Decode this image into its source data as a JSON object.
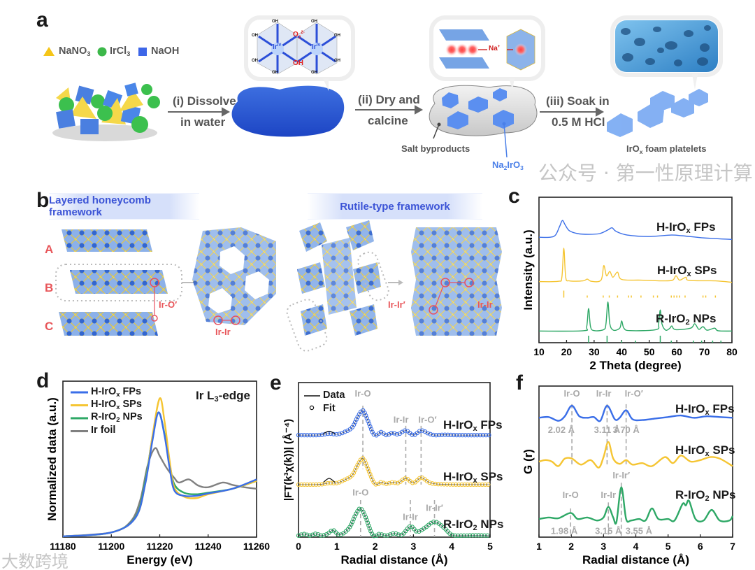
{
  "panel_labels": {
    "a": "a",
    "b": "b",
    "c": "c",
    "d": "d",
    "e": "e",
    "f": "f"
  },
  "panel_a": {
    "legend": [
      {
        "pre": "NaNO",
        "sub": "3",
        "color": "#f5c518",
        "shape": "triangle"
      },
      {
        "pre": "IrCl",
        "sub": "3",
        "color": "#3cb84a",
        "shape": "circle"
      },
      {
        "pre": "NaOH",
        "sub": "",
        "color": "#3d66e8",
        "shape": "square"
      }
    ],
    "step1": {
      "line1": "(i) Dissolve",
      "line2": "in water"
    },
    "step2": {
      "line1": "(ii) Dry and",
      "line2": "calcine"
    },
    "step3": {
      "line1": "(iii) Soak in",
      "line2": "0.5 M HCl"
    },
    "bubble1": {
      "oh": "OH",
      "o2": "O",
      "o2_sub": "2",
      "o2_sup": "2-",
      "ir": "Ir",
      "ir_sup": "IV"
    },
    "bubble2": {
      "na": "Na",
      "na_sup": "+"
    },
    "salt_label": "Salt byproducts",
    "na2iro3": {
      "pre": "Na",
      "sub1": "2",
      "mid": "IrO",
      "sub2": "3"
    },
    "foam_label": {
      "pre": "IrO",
      "sub": "x",
      "post": " foam platelets"
    }
  },
  "panel_b": {
    "banner_left": "Layered honeycomb framework",
    "banner_right": "Rutile-type framework",
    "layers": [
      "A",
      "B",
      "C"
    ],
    "ir_o_prime": "Ir-O′",
    "ir_ir": "Ir-Ir",
    "ir_ir_prime": "Ir-Ir′",
    "ir_ir_right": "Ir-Ir"
  },
  "series_labels": {
    "fps": {
      "pre": "H-IrO",
      "sub": "x",
      "post": " FPs"
    },
    "sps": {
      "pre": "H-IrO",
      "sub": "x",
      "post": " SPs"
    },
    "nps": {
      "pre": "R-IrO",
      "sub": "2",
      "post": " NPs"
    },
    "foil": {
      "pre": "Ir foil",
      "sub": "",
      "post": ""
    }
  },
  "colors": {
    "fps": "#3a6ee8",
    "sps": "#f5c533",
    "nps": "#2ea866",
    "foil": "#808080",
    "ref_line": "#aaaaaa"
  },
  "chart_data": [
    {
      "id": "c",
      "type": "line",
      "xlabel": "2 Theta (degree)",
      "ylabel": "Intensity (a.u.)",
      "xlim": [
        10,
        80
      ],
      "ylim": [
        0,
        100
      ],
      "xticks": [
        "10",
        "20",
        "30",
        "40",
        "50",
        "60",
        "70",
        "80"
      ],
      "series": [
        {
          "key": "fps",
          "x": [
            10,
            14,
            16,
            17.5,
            18.5,
            19.5,
            21,
            24,
            28,
            32,
            35,
            36.5,
            38,
            42,
            50,
            58,
            62,
            70,
            80
          ],
          "y": [
            72.5,
            72.5,
            74,
            80,
            84,
            81,
            77,
            75,
            74.5,
            75,
            77.5,
            79,
            76.5,
            74,
            73,
            74,
            73.5,
            72,
            71
          ]
        },
        {
          "key": "sps",
          "x": [
            10,
            17,
            18.3,
            19,
            19.7,
            21,
            26,
            27.5,
            29,
            32.5,
            33.5,
            34.5,
            35.7,
            36.8,
            38.5,
            40,
            47,
            55,
            58.5,
            59.7,
            61,
            63.3,
            64.5,
            74,
            80
          ],
          "y": [
            42,
            42.2,
            45,
            65,
            45,
            42.5,
            42.5,
            43.7,
            42.2,
            43,
            53,
            46,
            49,
            45,
            48.5,
            43.5,
            43,
            42.5,
            43,
            46,
            43,
            45,
            42.8,
            42.5,
            41.5
          ]
        },
        {
          "key": "nps",
          "x": [
            10,
            26,
            27.3,
            28,
            28.7,
            30,
            33.5,
            34.3,
            35,
            35.7,
            37,
            39.3,
            40,
            40.8,
            43,
            52.5,
            53.4,
            54,
            54.6,
            56,
            57.5,
            58.2,
            59.5,
            65,
            66.5,
            68,
            69.5,
            71,
            73.7,
            75,
            80
          ],
          "y": [
            8,
            8.2,
            11,
            23.5,
            11,
            8.3,
            9,
            13,
            28,
            13,
            8.6,
            10,
            15,
            10,
            8.3,
            9,
            13,
            22.5,
            13,
            8.6,
            10,
            11.5,
            9,
            10,
            13,
            9.2,
            11,
            8.6,
            10,
            8.2,
            8
          ]
        }
      ],
      "reference_ticks": [
        {
          "key": "sps",
          "x": [
            19,
            27.5,
            33.3,
            35.5,
            38.5,
            42.5,
            43.5,
            47,
            51.5,
            53,
            58,
            59,
            60,
            61,
            63,
            69.5,
            70.5,
            74
          ],
          "tall": [
            19
          ]
        },
        {
          "key": "nps",
          "x": [
            28,
            34.7,
            40,
            45,
            54,
            58,
            66,
            69,
            73,
            76
          ],
          "tall": [
            28,
            34.7,
            54
          ]
        }
      ]
    },
    {
      "id": "d",
      "type": "line",
      "xlabel": "Energy (eV)",
      "ylabel": "Normalized data (a.u.)",
      "annotation": {
        "pre": "Ir L",
        "sub": "3",
        "post": "-edge"
      },
      "xlim": [
        11180,
        11260
      ],
      "ylim": [
        0,
        100
      ],
      "xticks": [
        "11180",
        "11200",
        "11220",
        "11240",
        "11260"
      ],
      "legend": "top-left",
      "series": [
        {
          "key": "foil",
          "x": [
            11180,
            11200,
            11208,
            11212,
            11215,
            11218,
            11220,
            11223,
            11226,
            11228,
            11232,
            11236,
            11240,
            11246,
            11250,
            11255,
            11260
          ],
          "y": [
            0.5,
            3,
            10,
            24,
            46,
            57,
            52,
            44,
            38,
            35,
            37,
            33,
            32,
            35,
            33.5,
            32,
            31
          ]
        },
        {
          "key": "nps",
          "x": [
            11180,
            11200,
            11210,
            11214,
            11217,
            11219.5,
            11222,
            11224,
            11226,
            11230,
            11235,
            11240,
            11250,
            11260
          ],
          "y": [
            0.5,
            3,
            13,
            36,
            64,
            80,
            66,
            48,
            34,
            28.5,
            27.5,
            28.5,
            31,
            36
          ]
        },
        {
          "key": "sps",
          "x": [
            11180,
            11200,
            11210,
            11214,
            11217,
            11220,
            11222,
            11224,
            11226,
            11230,
            11235,
            11240,
            11250,
            11260
          ],
          "y": [
            0.5,
            3,
            12.5,
            34,
            65,
            89,
            74,
            50,
            32,
            26,
            25,
            27.5,
            31,
            36
          ]
        },
        {
          "key": "fps",
          "x": [
            11180,
            11200,
            11210,
            11214,
            11217,
            11219.5,
            11222,
            11224,
            11226,
            11230,
            11235,
            11240,
            11250,
            11260
          ],
          "y": [
            0.5,
            3,
            12.5,
            34,
            62,
            80,
            65,
            45,
            30,
            26.5,
            26.5,
            28,
            31,
            37
          ]
        }
      ]
    },
    {
      "id": "e",
      "type": "scatter+line",
      "xlabel": "Radial distance (Å)",
      "ylabel": "|FT(k³χ(k))| (Å⁻⁴)",
      "xlim": [
        0,
        5
      ],
      "ylim": [
        0,
        100
      ],
      "xticks": [
        "0",
        "1",
        "2",
        "3",
        "4",
        "5"
      ],
      "legend_entries": [
        "Data",
        "Fit"
      ],
      "series": [
        {
          "key": "fps",
          "x": [
            0,
            0.4,
            0.6,
            0.8,
            1.0,
            1.2,
            1.4,
            1.55,
            1.68,
            1.8,
            1.95,
            2.05,
            2.15,
            2.3,
            2.45,
            2.6,
            2.8,
            3.0,
            3.2,
            3.4,
            3.55,
            3.8,
            4.2,
            5
          ],
          "y": [
            66,
            66,
            66.2,
            67,
            66.5,
            68,
            71,
            78,
            82,
            76,
            67,
            66,
            68,
            66,
            67.5,
            66.5,
            69,
            66,
            69,
            67,
            66,
            66.2,
            66,
            66
          ]
        },
        {
          "key": "sps",
          "x": [
            0,
            0.4,
            0.6,
            0.8,
            1.0,
            1.2,
            1.4,
            1.55,
            1.68,
            1.8,
            1.95,
            2.05,
            2.15,
            2.3,
            2.45,
            2.6,
            2.8,
            3.0,
            3.2,
            3.4,
            3.55,
            3.8,
            4.2,
            5
          ],
          "y": [
            34,
            34,
            34.2,
            35,
            35,
            37,
            40,
            47,
            51,
            45,
            36,
            34,
            35.5,
            34.5,
            35.5,
            35,
            38,
            35,
            38.5,
            35.5,
            34.5,
            34.2,
            34,
            34
          ]
        },
        {
          "key": "nps",
          "x": [
            0,
            0.15,
            0.3,
            0.45,
            0.6,
            0.75,
            0.9,
            1.05,
            1.2,
            1.35,
            1.5,
            1.62,
            1.75,
            1.9,
            2.0,
            2.1,
            2.3,
            2.5,
            2.7,
            2.92,
            3.1,
            3.3,
            3.55,
            3.8,
            4.0,
            4.3,
            4.6,
            5
          ],
          "y": [
            1,
            2,
            1,
            2.2,
            1,
            2,
            4.5,
            1.5,
            3,
            7,
            15,
            18.5,
            13,
            3,
            0.5,
            2,
            1,
            2.5,
            1.5,
            7,
            3.5,
            6,
            10,
            6,
            1.5,
            1,
            1.2,
            1
          ]
        }
      ],
      "data_deviation": [
        {
          "key": "fps",
          "x": [
            0.65,
            0.8,
            0.95
          ],
          "y": [
            67,
            68.5,
            67
          ]
        },
        {
          "key": "sps",
          "x": [
            0.65,
            0.8,
            0.95
          ],
          "y": [
            35.5,
            38,
            35.5
          ]
        }
      ],
      "reference_lines": [
        {
          "x": 1.68,
          "label": "Ir-O",
          "group": "upper"
        },
        {
          "x": 2.8,
          "label": "Ir-Ir",
          "group": "upper"
        },
        {
          "x": 3.2,
          "label": "Ir-O′",
          "group": "upper"
        },
        {
          "x": 1.62,
          "label": "Ir-O",
          "group": "lower"
        },
        {
          "x": 2.92,
          "label": "Ir-Ir",
          "group": "lower"
        },
        {
          "x": 3.55,
          "label": "Ir-Ir′",
          "group": "lower"
        }
      ]
    },
    {
      "id": "f",
      "type": "line",
      "xlabel": "Radial distance (Å)",
      "ylabel": "G (r)",
      "xlim": [
        1,
        7
      ],
      "ylim": [
        0,
        100
      ],
      "xticks": [
        "1",
        "2",
        "3",
        "4",
        "5",
        "6",
        "7"
      ],
      "series": [
        {
          "key": "fps",
          "x": [
            1,
            1.3,
            1.6,
            1.8,
            2.02,
            2.25,
            2.5,
            2.7,
            2.9,
            3.11,
            3.35,
            3.5,
            3.7,
            3.9,
            4.2,
            4.6,
            5.0,
            5.4,
            5.8,
            6.2,
            6.6,
            7
          ],
          "y": [
            79,
            79.5,
            77,
            80,
            87,
            80,
            79,
            79.5,
            77,
            87,
            78,
            79,
            84,
            78,
            77.5,
            78.5,
            79.5,
            80.5,
            79,
            80,
            79.5,
            79
          ]
        },
        {
          "key": "sps",
          "x": [
            1,
            1.2,
            1.4,
            1.6,
            1.8,
            2.02,
            2.3,
            2.6,
            2.85,
            3.0,
            3.15,
            3.3,
            3.5,
            3.7,
            3.9,
            4.2,
            4.5,
            4.9,
            5.15,
            5.4,
            5.7,
            6.0,
            6.3,
            6.6,
            7
          ],
          "y": [
            50,
            51,
            50,
            47,
            52,
            52,
            48,
            51,
            46,
            53,
            63,
            52,
            48.5,
            51,
            48,
            49,
            47,
            53,
            49,
            54,
            50,
            51,
            53,
            52,
            47
          ]
        },
        {
          "key": "nps",
          "x": [
            1,
            1.3,
            1.6,
            1.98,
            2.2,
            2.5,
            2.8,
            3.0,
            3.15,
            3.3,
            3.4,
            3.55,
            3.7,
            3.85,
            4.1,
            4.3,
            4.5,
            4.7,
            5.0,
            5.2,
            5.45,
            5.55,
            5.65,
            5.85,
            6.1,
            6.35,
            6.6,
            6.9,
            7
          ],
          "y": [
            12,
            13,
            12.5,
            16,
            12,
            13,
            11,
            13,
            20,
            13,
            10,
            33,
            12,
            11,
            12,
            11,
            19,
            12,
            12,
            11,
            22,
            21,
            24,
            12,
            11,
            18,
            11,
            11,
            14
          ]
        }
      ],
      "reference_lines": [
        {
          "x": 2.02,
          "label": "Ir-O",
          "value": "2.02 Å",
          "group": "upper"
        },
        {
          "x": 3.11,
          "label": "Ir-Ir",
          "value": "3.11 Å",
          "group": "upper"
        },
        {
          "x": 3.7,
          "label": "Ir-O′",
          "value": "3.70 Å",
          "group": "upper"
        },
        {
          "x": 1.98,
          "label": "Ir-O",
          "value": "1.98 Å",
          "group": "lower"
        },
        {
          "x": 3.15,
          "label": "Ir-Ir",
          "value": "3.15 Å",
          "group": "lower"
        },
        {
          "x": 3.55,
          "label": "Ir-Ir′",
          "value": "3.55 Å",
          "group": "lower"
        }
      ]
    }
  ],
  "watermarks": {
    "left": "大数跨境",
    "right": "公众号 · 第一性原理计算"
  }
}
